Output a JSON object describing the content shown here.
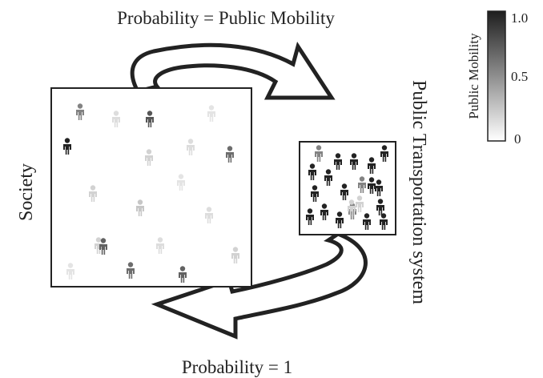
{
  "diagram": {
    "top_label": "Probability = Public Mobility",
    "bottom_label": "Probability = 1",
    "society_label": "Society",
    "transport_label": "Public Transportation system",
    "colorbar": {
      "title": "Public Mobility",
      "ticks": [
        "1.0",
        "0.5",
        "0"
      ],
      "color_low": "#ffffff",
      "color_high": "#1e1e1e"
    },
    "society_people_mobility": [
      0.55,
      0.15,
      0.75,
      0.12,
      0.98,
      0.2,
      0.15,
      0.65,
      0.2,
      0.12,
      0.25,
      0.15,
      0.2,
      0.15,
      0.2,
      0.12,
      0.65,
      0.7,
      0.7
    ],
    "transport_people_mobility": [
      0.55,
      0.98,
      0.98,
      0.98,
      0.98,
      0.98,
      0.98,
      0.98,
      0.55,
      0.98,
      0.98,
      0.2,
      0.98,
      0.98,
      0.98,
      0.55,
      0.98,
      0.98,
      0.2,
      0.98,
      0.98
    ]
  }
}
